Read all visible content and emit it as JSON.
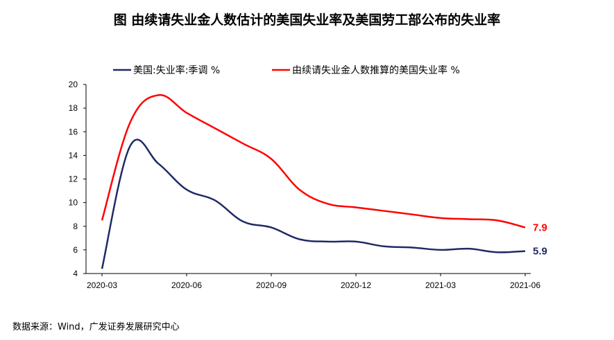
{
  "title": "图   由续请失业金人数估计的美国失业率及美国劳工部公布的失业率",
  "source": "数据来源：Wind，广发证券发展研究中心",
  "chart_data": {
    "type": "line",
    "title": "图   由续请失业金人数估计的美国失业率及美国劳工部公布的失业率",
    "xlabel": "",
    "ylabel": "",
    "ylim": [
      4,
      20
    ],
    "yticks": [
      "4",
      "6",
      "8",
      "10",
      "12",
      "14",
      "16",
      "18",
      "20"
    ],
    "xticks": [
      "2020-03",
      "2020-06",
      "2020-09",
      "2020-12",
      "2021-03",
      "2021-06"
    ],
    "x": [
      "2020-03",
      "2020-04",
      "2020-05",
      "2020-06",
      "2020-07",
      "2020-08",
      "2020-09",
      "2020-10",
      "2020-11",
      "2020-12",
      "2021-01",
      "2021-02",
      "2021-03",
      "2021-04",
      "2021-05",
      "2021-06"
    ],
    "grid": false,
    "legend_position": "top",
    "series": [
      {
        "name": "美国:失业率:季调 %",
        "color": "#1f2a66",
        "values": [
          4.4,
          14.8,
          13.3,
          11.1,
          10.2,
          8.4,
          7.9,
          6.9,
          6.7,
          6.7,
          6.3,
          6.2,
          6.0,
          6.1,
          5.8,
          5.9
        ],
        "end_label": "5.9"
      },
      {
        "name": "由续请失业金人数推算的美国失业率 %",
        "color": "#ff0000",
        "values": [
          8.5,
          16.8,
          19.1,
          17.6,
          16.3,
          15.0,
          13.7,
          11.1,
          9.9,
          9.6,
          9.3,
          9.0,
          8.7,
          8.6,
          8.5,
          7.9
        ],
        "end_label": "7.9"
      }
    ]
  }
}
